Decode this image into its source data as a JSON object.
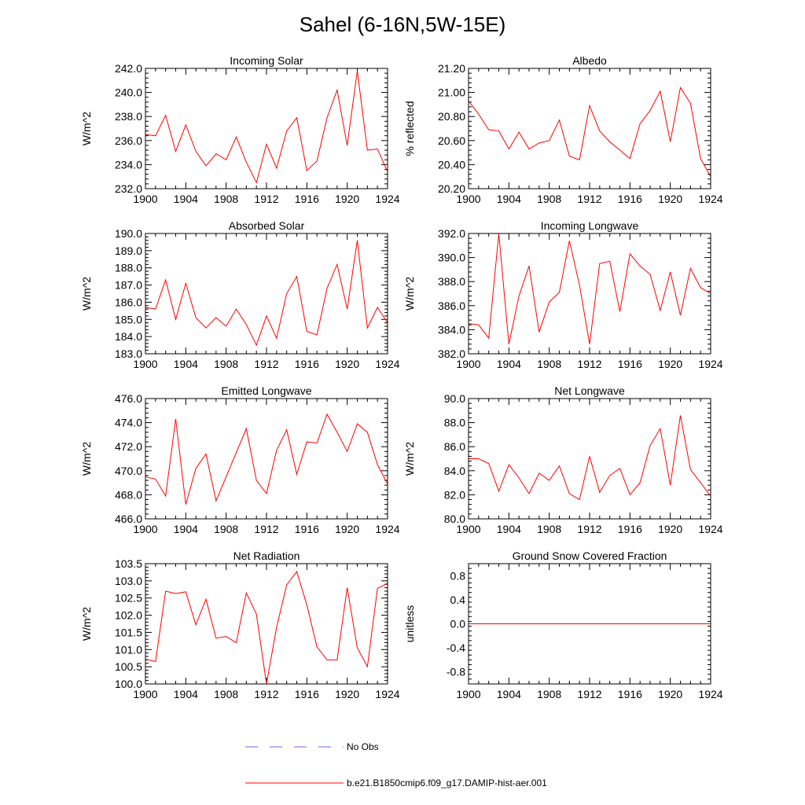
{
  "title": "Sahel (6-16N,5W-15E)",
  "legend": {
    "entries": [
      {
        "label": "No Obs",
        "color": "#6b6bd6",
        "dash": true
      },
      {
        "label": "b.e21.B1850cmip6.f09_g17.DAMIP-hist-aer.001",
        "color": "#ff0000",
        "dash": false
      }
    ]
  },
  "chart_data": [
    {
      "type": "line",
      "title": "Incoming Solar",
      "ylabel": "W/m^2",
      "xlim": [
        1900,
        1924
      ],
      "ylim": [
        232.0,
        242.0
      ],
      "xticks": [
        1900,
        1904,
        1908,
        1912,
        1916,
        1920,
        1924
      ],
      "yticks": [
        "232.0",
        "234.0",
        "236.0",
        "238.0",
        "240.0",
        "242.0"
      ],
      "x": [
        1900,
        1901,
        1902,
        1903,
        1904,
        1905,
        1906,
        1907,
        1908,
        1909,
        1910,
        1911,
        1912,
        1913,
        1914,
        1915,
        1916,
        1917,
        1918,
        1919,
        1920,
        1921,
        1922,
        1923,
        1924
      ],
      "values": [
        236.5,
        236.4,
        238.1,
        235.1,
        237.3,
        235.1,
        233.9,
        234.9,
        234.4,
        236.3,
        234.2,
        232.5,
        235.7,
        233.7,
        236.8,
        237.9,
        233.5,
        234.3,
        237.9,
        240.2,
        235.6,
        241.8,
        235.2,
        235.3,
        233.4
      ]
    },
    {
      "type": "line",
      "title": "Albedo",
      "ylabel": "% reflected",
      "xlim": [
        1900,
        1924
      ],
      "ylim": [
        20.2,
        21.2
      ],
      "xticks": [
        1900,
        1904,
        1908,
        1912,
        1916,
        1920,
        1924
      ],
      "yticks": [
        "20.20",
        "20.40",
        "20.60",
        "20.80",
        "21.00",
        "21.20"
      ],
      "x": [
        1900,
        1901,
        1902,
        1903,
        1904,
        1905,
        1906,
        1907,
        1908,
        1909,
        1910,
        1911,
        1912,
        1913,
        1914,
        1915,
        1916,
        1917,
        1918,
        1919,
        1920,
        1921,
        1922,
        1923,
        1924
      ],
      "values": [
        20.93,
        20.82,
        20.69,
        20.68,
        20.53,
        20.67,
        20.53,
        20.58,
        20.6,
        20.77,
        20.47,
        20.44,
        20.89,
        20.68,
        20.59,
        20.52,
        20.45,
        20.74,
        20.85,
        21.01,
        20.59,
        21.04,
        20.91,
        20.45,
        20.3
      ]
    },
    {
      "type": "line",
      "title": "Absorbed Solar",
      "ylabel": "W/m^2",
      "xlim": [
        1900,
        1924
      ],
      "ylim": [
        183.0,
        190.0
      ],
      "xticks": [
        1900,
        1904,
        1908,
        1912,
        1916,
        1920,
        1924
      ],
      "yticks": [
        "183.0",
        "184.0",
        "185.0",
        "186.0",
        "187.0",
        "188.0",
        "189.0",
        "190.0"
      ],
      "x": [
        1900,
        1901,
        1902,
        1903,
        1904,
        1905,
        1906,
        1907,
        1908,
        1909,
        1910,
        1911,
        1912,
        1913,
        1914,
        1915,
        1916,
        1917,
        1918,
        1919,
        1920,
        1921,
        1922,
        1923,
        1924
      ],
      "values": [
        185.7,
        185.6,
        187.3,
        185.0,
        187.1,
        185.1,
        184.5,
        185.1,
        184.6,
        185.6,
        184.7,
        183.5,
        185.2,
        183.9,
        186.5,
        187.5,
        184.3,
        184.1,
        186.8,
        188.2,
        185.6,
        189.6,
        184.5,
        185.7,
        184.8
      ]
    },
    {
      "type": "line",
      "title": "Incoming Longwave",
      "ylabel": "W/m^2",
      "xlim": [
        1900,
        1924
      ],
      "ylim": [
        382.0,
        392.0
      ],
      "xticks": [
        1900,
        1904,
        1908,
        1912,
        1916,
        1920,
        1924
      ],
      "yticks": [
        "382.0",
        "384.0",
        "386.0",
        "388.0",
        "390.0",
        "392.0"
      ],
      "x": [
        1900,
        1901,
        1902,
        1903,
        1904,
        1905,
        1906,
        1907,
        1908,
        1909,
        1910,
        1911,
        1912,
        1913,
        1914,
        1915,
        1916,
        1917,
        1918,
        1919,
        1920,
        1921,
        1922,
        1923,
        1924
      ],
      "values": [
        384.5,
        384.4,
        383.3,
        392.0,
        382.8,
        386.8,
        389.3,
        383.8,
        386.3,
        387.1,
        391.4,
        387.7,
        382.8,
        389.5,
        389.7,
        385.5,
        390.3,
        389.3,
        388.6,
        385.6,
        388.8,
        385.2,
        389.1,
        387.5,
        387.0
      ]
    },
    {
      "type": "line",
      "title": "Emitted Longwave",
      "ylabel": "W/m^2",
      "xlim": [
        1900,
        1924
      ],
      "ylim": [
        466.0,
        476.0
      ],
      "xticks": [
        1900,
        1904,
        1908,
        1912,
        1916,
        1920,
        1924
      ],
      "yticks": [
        "466.0",
        "468.0",
        "470.0",
        "472.0",
        "474.0",
        "476.0"
      ],
      "x": [
        1900,
        1901,
        1902,
        1903,
        1904,
        1905,
        1906,
        1907,
        1908,
        1909,
        1910,
        1911,
        1912,
        1913,
        1914,
        1915,
        1916,
        1917,
        1918,
        1919,
        1920,
        1921,
        1922,
        1923,
        1924
      ],
      "values": [
        469.5,
        469.3,
        467.9,
        474.3,
        467.2,
        470.2,
        471.4,
        467.5,
        469.5,
        471.5,
        473.5,
        469.2,
        468.1,
        471.7,
        473.4,
        469.7,
        472.4,
        472.3,
        474.7,
        473.2,
        471.6,
        473.9,
        473.2,
        470.5,
        468.9
      ]
    },
    {
      "type": "line",
      "title": "Net Longwave",
      "ylabel": "W/m^2",
      "xlim": [
        1900,
        1924
      ],
      "ylim": [
        80.0,
        90.0
      ],
      "xticks": [
        1900,
        1904,
        1908,
        1912,
        1916,
        1920,
        1924
      ],
      "yticks": [
        "80.0",
        "82.0",
        "84.0",
        "86.0",
        "88.0",
        "90.0"
      ],
      "x": [
        1900,
        1901,
        1902,
        1903,
        1904,
        1905,
        1906,
        1907,
        1908,
        1909,
        1910,
        1911,
        1912,
        1913,
        1914,
        1915,
        1916,
        1917,
        1918,
        1919,
        1920,
        1921,
        1922,
        1923,
        1924
      ],
      "values": [
        85.0,
        85.0,
        84.6,
        82.3,
        84.5,
        83.4,
        82.1,
        83.8,
        83.2,
        84.4,
        82.1,
        81.6,
        85.2,
        82.2,
        83.6,
        84.2,
        82.0,
        83.0,
        86.1,
        87.5,
        82.8,
        88.6,
        84.1,
        83.0,
        81.9
      ]
    },
    {
      "type": "line",
      "title": "Net Radiation",
      "ylabel": "W/m^2",
      "xlim": [
        1900,
        1924
      ],
      "ylim": [
        100.0,
        103.5
      ],
      "xticks": [
        1900,
        1904,
        1908,
        1912,
        1916,
        1920,
        1924
      ],
      "yticks": [
        "100.0",
        "100.5",
        "101.0",
        "101.5",
        "102.0",
        "102.5",
        "103.0",
        "103.5"
      ],
      "x": [
        1900,
        1901,
        1902,
        1903,
        1904,
        1905,
        1906,
        1907,
        1908,
        1909,
        1910,
        1911,
        1912,
        1913,
        1914,
        1915,
        1916,
        1917,
        1918,
        1919,
        1920,
        1921,
        1922,
        1923,
        1924
      ],
      "values": [
        100.72,
        100.65,
        102.7,
        102.63,
        102.68,
        101.72,
        102.47,
        101.33,
        101.38,
        101.2,
        102.65,
        102.03,
        100.0,
        101.65,
        102.88,
        103.27,
        102.3,
        101.08,
        100.7,
        100.7,
        102.8,
        101.05,
        100.5,
        102.78,
        102.93
      ]
    },
    {
      "type": "line",
      "title": "Ground Snow Covered Fraction",
      "ylabel": "unitless",
      "xlim": [
        1900,
        1924
      ],
      "ylim": [
        -1.0,
        1.0
      ],
      "xticks": [
        1900,
        1904,
        1908,
        1912,
        1916,
        1920,
        1924
      ],
      "yticks": [
        "-0.8",
        "-0.4",
        "0.0",
        "0.4",
        "0.8"
      ],
      "ytick_values": [
        -0.8,
        -0.4,
        0.0,
        0.4,
        0.8
      ],
      "x": [
        1900,
        1901,
        1902,
        1903,
        1904,
        1905,
        1906,
        1907,
        1908,
        1909,
        1910,
        1911,
        1912,
        1913,
        1914,
        1915,
        1916,
        1917,
        1918,
        1919,
        1920,
        1921,
        1922,
        1923,
        1924
      ],
      "values": [
        0,
        0,
        0,
        0,
        0,
        0,
        0,
        0,
        0,
        0,
        0,
        0,
        0,
        0,
        0,
        0,
        0,
        0,
        0,
        0,
        0,
        0,
        0,
        0,
        0
      ]
    }
  ]
}
